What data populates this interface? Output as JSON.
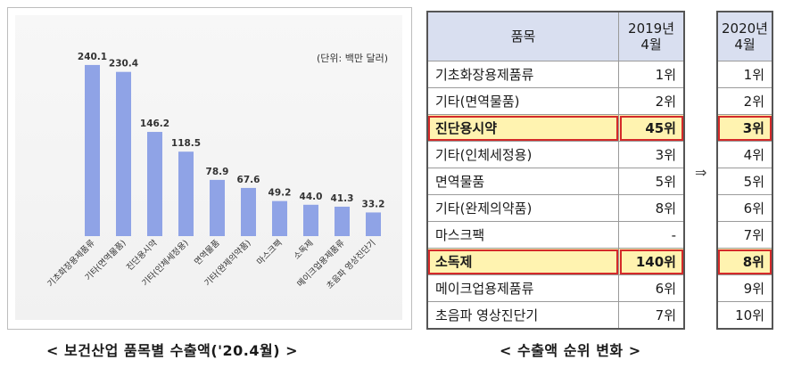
{
  "chart_data": {
    "type": "bar",
    "unit_note": "(단위: 백만 달러)",
    "categories": [
      "기초화장용제품류",
      "기타(면역물품)",
      "진단용시약",
      "기타(인체세정용)",
      "면역물품",
      "기타(완제의약품)",
      "마스크팩",
      "소독제",
      "메이크업용제품류",
      "초음파 영상진단기"
    ],
    "values": [
      240.1,
      230.4,
      146.2,
      118.5,
      78.9,
      67.6,
      49.2,
      44.0,
      41.3,
      33.2
    ],
    "value_labels": [
      "240.1",
      "230.4",
      "146.2",
      "118.5",
      "78.9",
      "67.6",
      "49.2",
      "44.0",
      "41.3",
      "33.2"
    ],
    "ylim": [
      0,
      260
    ],
    "bar_color": "#8fa3e6",
    "grid": false
  },
  "captions": {
    "left": "< 보건산업 품목별 수출액('20.4월) >",
    "right": "< 수출액 순위 변화 >"
  },
  "rank_table": {
    "header_item": "품목",
    "header_2019_line1": "2019년",
    "header_2019_line2": "4월",
    "header_2020_line1": "2020년",
    "header_2020_line2": "4월",
    "arrow": "⇒",
    "rows": [
      {
        "item": "기초화장용제품류",
        "rank2019": "1위",
        "rank2020": "1위"
      },
      {
        "item": "기타(면역물품)",
        "rank2019": "2위",
        "rank2020": "2위"
      },
      {
        "item": "진단용시약",
        "rank2019": "45위",
        "rank2020": "3위"
      },
      {
        "item": "기타(인체세정용)",
        "rank2019": "3위",
        "rank2020": "4위"
      },
      {
        "item": "면역물품",
        "rank2019": "5위",
        "rank2020": "5위"
      },
      {
        "item": "기타(완제의약품)",
        "rank2019": "8위",
        "rank2020": "6위"
      },
      {
        "item": "마스크팩",
        "rank2019": "-",
        "rank2020": "7위"
      },
      {
        "item": "소독제",
        "rank2019": "140위",
        "rank2020": "8위"
      },
      {
        "item": "메이크업용제품류",
        "rank2019": "6위",
        "rank2020": "9위"
      },
      {
        "item": "초음파 영상진단기",
        "rank2019": "7위",
        "rank2020": "10위"
      }
    ],
    "highlight_color": "#fff3b0",
    "highlight_border": "#d42a2a"
  }
}
